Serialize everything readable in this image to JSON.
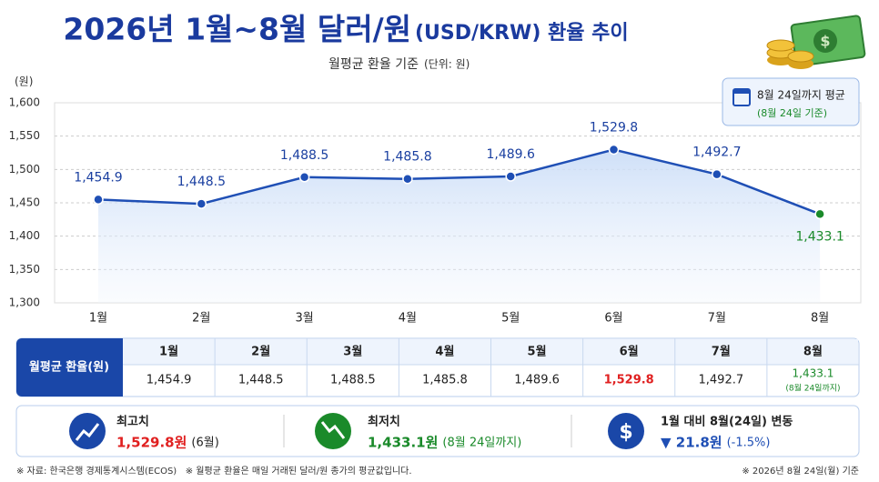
{
  "chart_data": {
    "type": "line",
    "title": "2026년 1월~8월 달러/원",
    "title_suffix": "(USD/KRW) 환율 추이",
    "subtitle": "월평균 환율 기준",
    "subtitle_note": "(단위: 원)",
    "y_label": "(원)",
    "categories": [
      "1월",
      "2월",
      "3월",
      "4월",
      "5월",
      "6월",
      "7월",
      "8월"
    ],
    "values": [
      1454.9,
      1448.5,
      1488.5,
      1485.8,
      1489.6,
      1529.8,
      1492.7,
      1433.1
    ],
    "value_labels": [
      "1,454.9",
      "1,448.5",
      "1,488.5",
      "1,485.8",
      "1,489.6",
      "1,529.8",
      "1,492.7",
      "1,433.1"
    ],
    "color": "#1f4fb5",
    "last_color": "#1a8a2a",
    "max_color": "#e02020",
    "ylim": [
      1300,
      1600
    ],
    "yticks": [
      {
        "value": 1300,
        "label": "1,300"
      },
      {
        "value": 1350,
        "label": "1,350"
      },
      {
        "value": 1400,
        "label": "1,400"
      },
      {
        "value": 1450,
        "label": "1,450"
      },
      {
        "value": 1500,
        "label": "1,500"
      },
      {
        "value": 1550,
        "label": "1,550"
      },
      {
        "value": 1600,
        "label": "1,600"
      }
    ],
    "grid": true,
    "note": {
      "title": "8월 24일까지 평균",
      "sub": "(8월 24일 기준)"
    }
  },
  "table": {
    "header": "월평균 환율(원)",
    "last_note": "(8월 24일까지)"
  },
  "summary": [
    {
      "label": "최고치",
      "value": "1,529.8원",
      "note": "(6월)"
    },
    {
      "label": "최저치",
      "value": "1,433.1원",
      "note": "(8월 24일까지)"
    },
    {
      "label": "1월 대비 8월(24일) 변동",
      "value": "▼ 21.8원",
      "note": "(-1.5%)"
    }
  ],
  "footer": {
    "left": "※ 자료: 한국은행 경제통계시스템(ECOS)   ※ 월평균 환율은 매일 거래된 달러/원 종가의 평균값입니다.",
    "right": "※ 2026년 8월 24일(월) 기준"
  }
}
